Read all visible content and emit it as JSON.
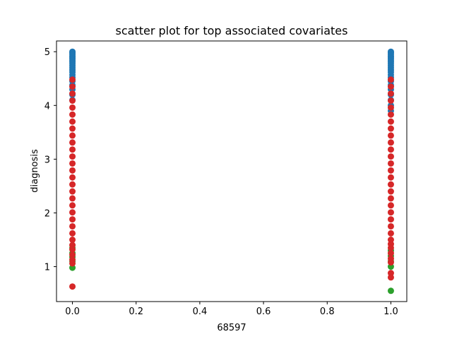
{
  "chart_data": {
    "type": "scatter",
    "title": "scatter plot for top associated covariates",
    "xlabel": "68597",
    "ylabel": "diagnosis",
    "xlim": [
      -0.05,
      1.05
    ],
    "ylim": [
      0.35,
      5.2
    ],
    "x_ticks": [
      "0.0",
      "0.2",
      "0.4",
      "0.6",
      "0.8",
      "1.0"
    ],
    "y_ticks": [
      "1",
      "2",
      "3",
      "4",
      "5"
    ],
    "grid": false,
    "legend": "none",
    "colors": {
      "blue": "#1f77b4",
      "green": "#2ca02c",
      "red": "#d62728"
    },
    "series": [
      {
        "color": "#1f77b4",
        "points": [
          [
            0,
            5.0
          ],
          [
            0,
            4.98
          ],
          [
            0,
            4.95
          ],
          [
            0,
            4.92
          ],
          [
            0,
            4.9
          ],
          [
            0,
            4.87
          ],
          [
            0,
            4.84
          ],
          [
            0,
            4.81
          ],
          [
            0,
            4.78
          ],
          [
            0,
            4.74
          ],
          [
            0,
            4.7
          ],
          [
            0,
            4.66
          ],
          [
            0,
            4.62
          ],
          [
            0,
            4.57
          ],
          [
            0,
            4.52
          ],
          [
            0,
            4.45
          ],
          [
            0,
            4.38
          ],
          [
            0,
            4.3
          ],
          [
            0,
            4.2
          ],
          [
            0,
            4.1
          ],
          [
            1,
            5.0
          ],
          [
            1,
            4.98
          ],
          [
            1,
            4.95
          ],
          [
            1,
            4.92
          ],
          [
            1,
            4.9
          ],
          [
            1,
            4.87
          ],
          [
            1,
            4.84
          ],
          [
            1,
            4.81
          ],
          [
            1,
            4.78
          ],
          [
            1,
            4.74
          ],
          [
            1,
            4.7
          ],
          [
            1,
            4.66
          ],
          [
            1,
            4.62
          ],
          [
            1,
            4.57
          ],
          [
            1,
            4.52
          ],
          [
            1,
            4.45
          ],
          [
            1,
            4.38
          ],
          [
            1,
            4.3
          ],
          [
            1,
            4.2
          ],
          [
            1,
            4.1
          ],
          [
            1,
            4.0
          ],
          [
            1,
            3.9
          ]
        ]
      },
      {
        "color": "#2ca02c",
        "points": [
          [
            0,
            1.35
          ],
          [
            0,
            1.25
          ],
          [
            0,
            1.18
          ],
          [
            0,
            1.1
          ],
          [
            0,
            0.98
          ],
          [
            1,
            1.3
          ],
          [
            1,
            1.2
          ],
          [
            1,
            1.1
          ],
          [
            1,
            1.0
          ],
          [
            1,
            0.55
          ]
        ]
      },
      {
        "color": "#d62728",
        "points": [
          [
            0,
            4.48
          ],
          [
            0,
            4.35
          ],
          [
            0,
            4.22
          ],
          [
            0,
            4.09
          ],
          [
            0,
            3.96
          ],
          [
            0,
            3.83
          ],
          [
            0,
            3.7
          ],
          [
            0,
            3.57
          ],
          [
            0,
            3.44
          ],
          [
            0,
            3.31
          ],
          [
            0,
            3.18
          ],
          [
            0,
            3.05
          ],
          [
            0,
            2.92
          ],
          [
            0,
            2.79
          ],
          [
            0,
            2.66
          ],
          [
            0,
            2.53
          ],
          [
            0,
            2.4
          ],
          [
            0,
            2.27
          ],
          [
            0,
            2.14
          ],
          [
            0,
            2.01
          ],
          [
            0,
            1.88
          ],
          [
            0,
            1.75
          ],
          [
            0,
            1.62
          ],
          [
            0,
            1.5
          ],
          [
            0,
            1.4
          ],
          [
            0,
            1.32
          ],
          [
            0,
            1.22
          ],
          [
            0,
            1.13
          ],
          [
            0,
            1.06
          ],
          [
            0,
            0.63
          ],
          [
            1,
            4.48
          ],
          [
            1,
            4.35
          ],
          [
            1,
            4.22
          ],
          [
            1,
            4.09
          ],
          [
            1,
            3.96
          ],
          [
            1,
            3.83
          ],
          [
            1,
            3.7
          ],
          [
            1,
            3.57
          ],
          [
            1,
            3.44
          ],
          [
            1,
            3.31
          ],
          [
            1,
            3.18
          ],
          [
            1,
            3.05
          ],
          [
            1,
            2.92
          ],
          [
            1,
            2.79
          ],
          [
            1,
            2.66
          ],
          [
            1,
            2.53
          ],
          [
            1,
            2.4
          ],
          [
            1,
            2.27
          ],
          [
            1,
            2.14
          ],
          [
            1,
            2.01
          ],
          [
            1,
            1.88
          ],
          [
            1,
            1.75
          ],
          [
            1,
            1.62
          ],
          [
            1,
            1.5
          ],
          [
            1,
            1.42
          ],
          [
            1,
            1.35
          ],
          [
            1,
            1.25
          ],
          [
            1,
            1.15
          ],
          [
            1,
            1.08
          ],
          [
            1,
            0.88
          ],
          [
            1,
            0.8
          ]
        ]
      }
    ]
  }
}
